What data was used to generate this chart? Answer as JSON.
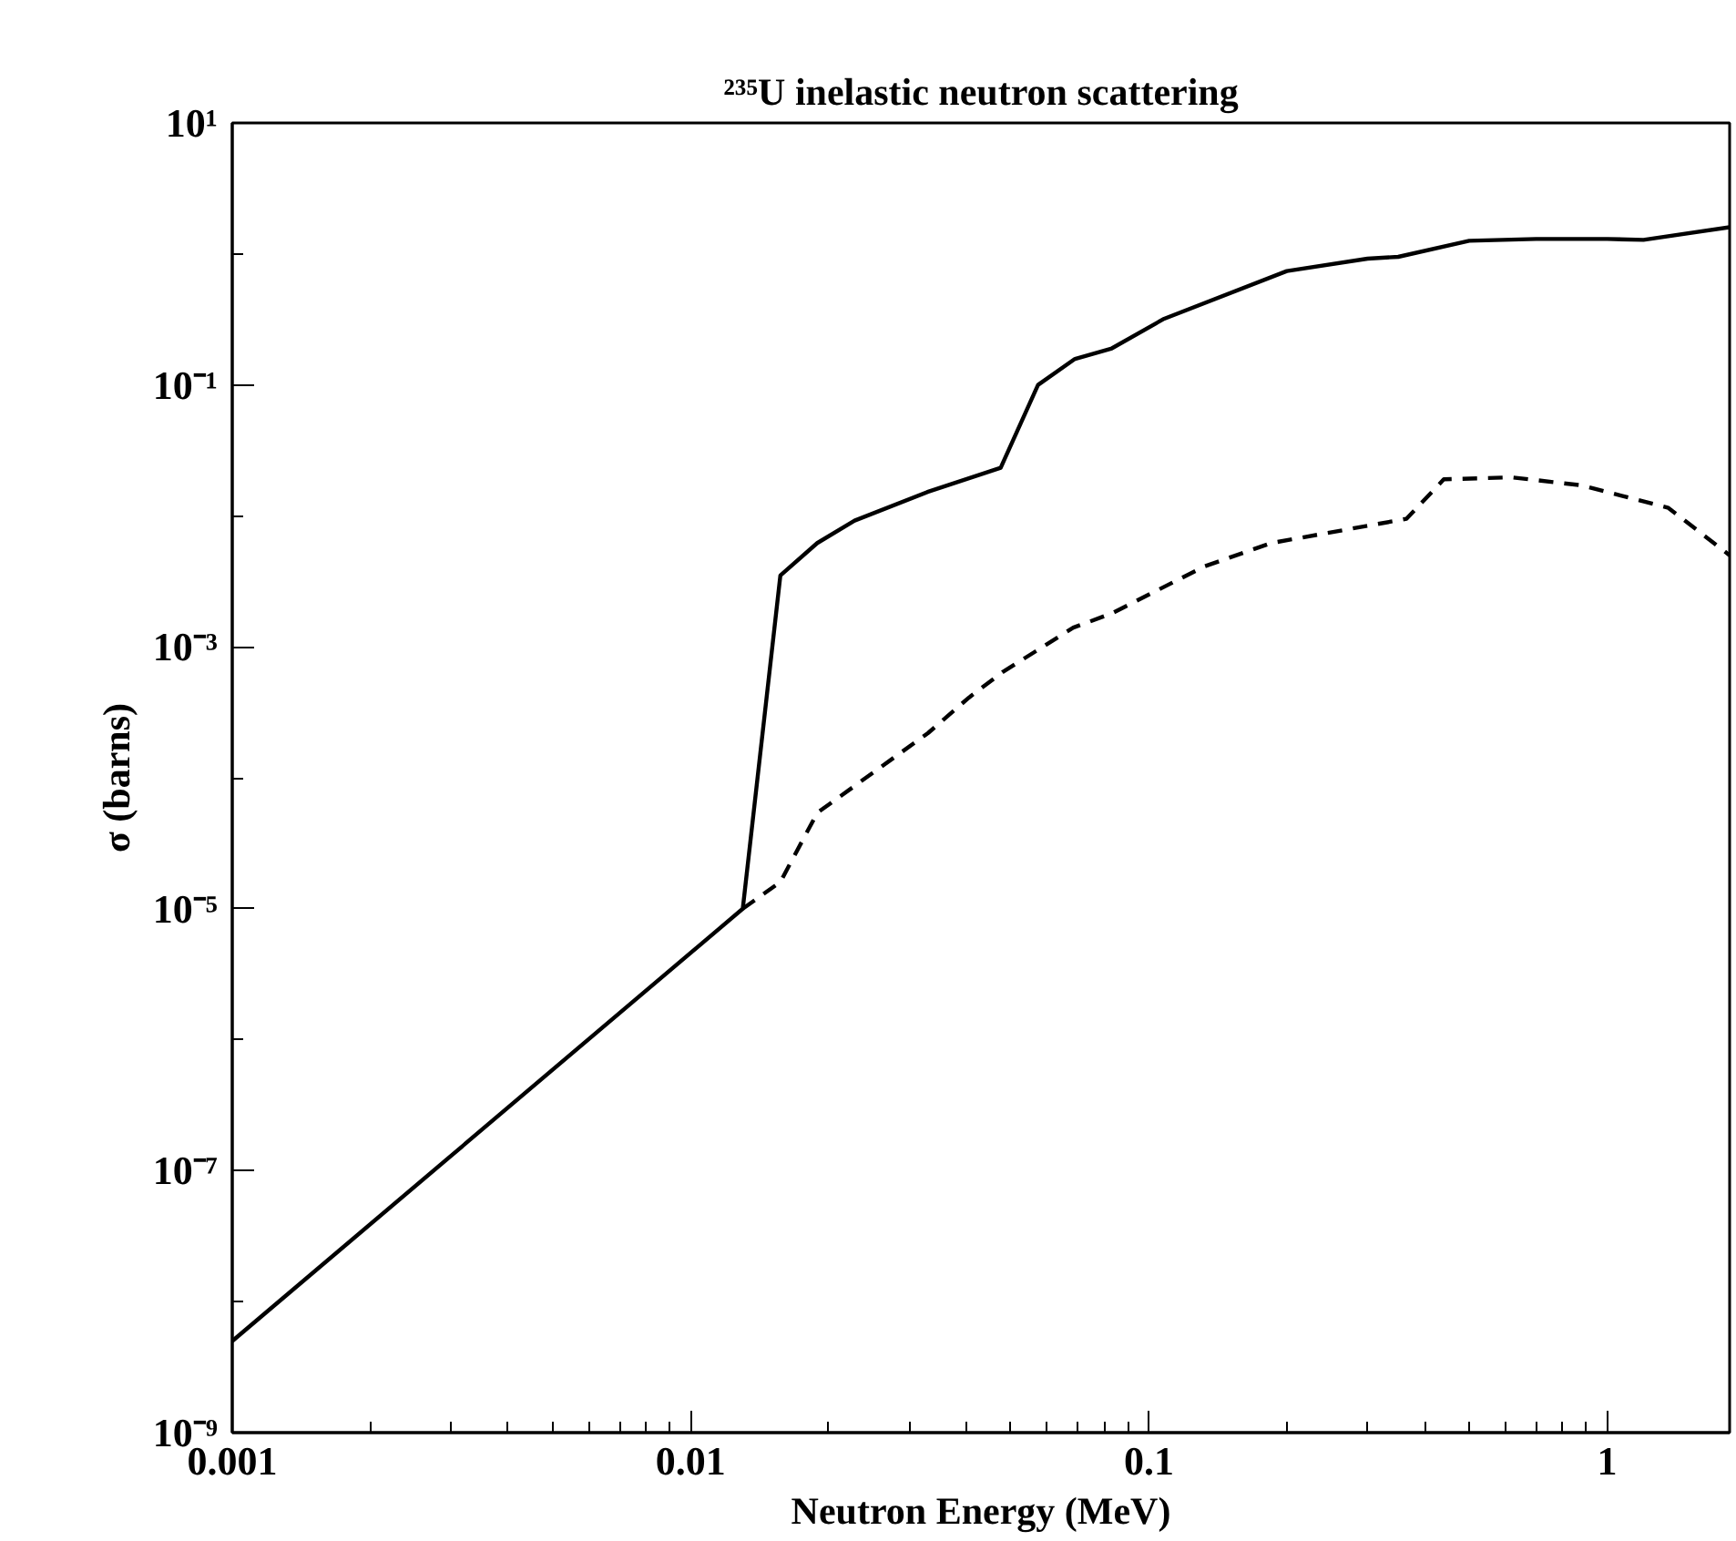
{
  "chart_data": {
    "type": "line",
    "title": "²³⁵U inelastic neutron scattering",
    "xlabel": "Neutron Energy (MeV)",
    "ylabel": "σ (barns)",
    "log": "xy",
    "grid": false,
    "marker": "none",
    "xlim": [
      0.001,
      1.85
    ],
    "ylim": [
      1e-09,
      10
    ],
    "xticks": [
      0.001,
      0.01,
      0.1,
      1
    ],
    "yticks": [
      {
        "value": 1e-09,
        "label": "10⁻⁹"
      },
      {
        "value": 1e-07,
        "label": "10⁻⁷"
      },
      {
        "value": 1e-05,
        "label": "10⁻⁵"
      },
      {
        "value": 0.001,
        "label": "10⁻³"
      },
      {
        "value": 0.1,
        "label": "10⁻¹"
      },
      {
        "value": 10,
        "label": "10¹"
      }
    ],
    "series": [
      {
        "color": "#000000",
        "line_style": "solid",
        "x": [
          0.001,
          0.013,
          0.0157,
          0.0189,
          0.0228,
          0.033,
          0.0475,
          0.0573,
          0.069,
          0.083,
          0.108,
          0.2,
          0.3,
          0.35,
          0.5,
          0.7,
          1.0,
          1.2,
          1.85
        ],
        "values": [
          5e-09,
          1e-05,
          0.0035,
          0.0062,
          0.0092,
          0.0153,
          0.0233,
          0.1,
          0.158,
          0.19,
          0.32,
          0.74,
          0.92,
          0.95,
          1.26,
          1.3,
          1.3,
          1.28,
          1.6
        ]
      },
      {
        "color": "#000000",
        "line_style": "dashed",
        "x": [
          0.013,
          0.0157,
          0.0189,
          0.033,
          0.0405,
          0.0479,
          0.0684,
          0.083,
          0.132,
          0.185,
          0.365,
          0.44,
          0.617,
          0.88,
          1.36,
          1.85
        ],
        "values": [
          1e-05,
          1.6e-05,
          5.4e-05,
          0.00022,
          0.00041,
          0.00064,
          0.0014,
          0.0018,
          0.0041,
          0.0062,
          0.0095,
          0.019,
          0.0197,
          0.0171,
          0.0115,
          0.005
        ]
      }
    ]
  }
}
